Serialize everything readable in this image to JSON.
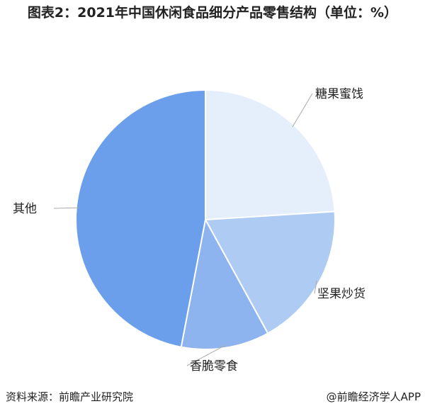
{
  "chart_data": {
    "type": "pie",
    "title": "图表2：2021年中国休闲食品细分产品零售结构（单位：%）",
    "categories": [
      "糖果蜜饯",
      "坚果炒货",
      "香脆零食",
      "其他"
    ],
    "values": [
      24,
      18,
      11,
      47
    ],
    "colors": [
      "#e5eefb",
      "#aecbf4",
      "#8db4ee",
      "#6b9feb"
    ],
    "start": "top, clockwise",
    "legend": "none (leader-line labels)"
  },
  "footer": {
    "source": "资料来源：前瞻产业研究院",
    "credit": "@前瞻经济学人APP"
  }
}
